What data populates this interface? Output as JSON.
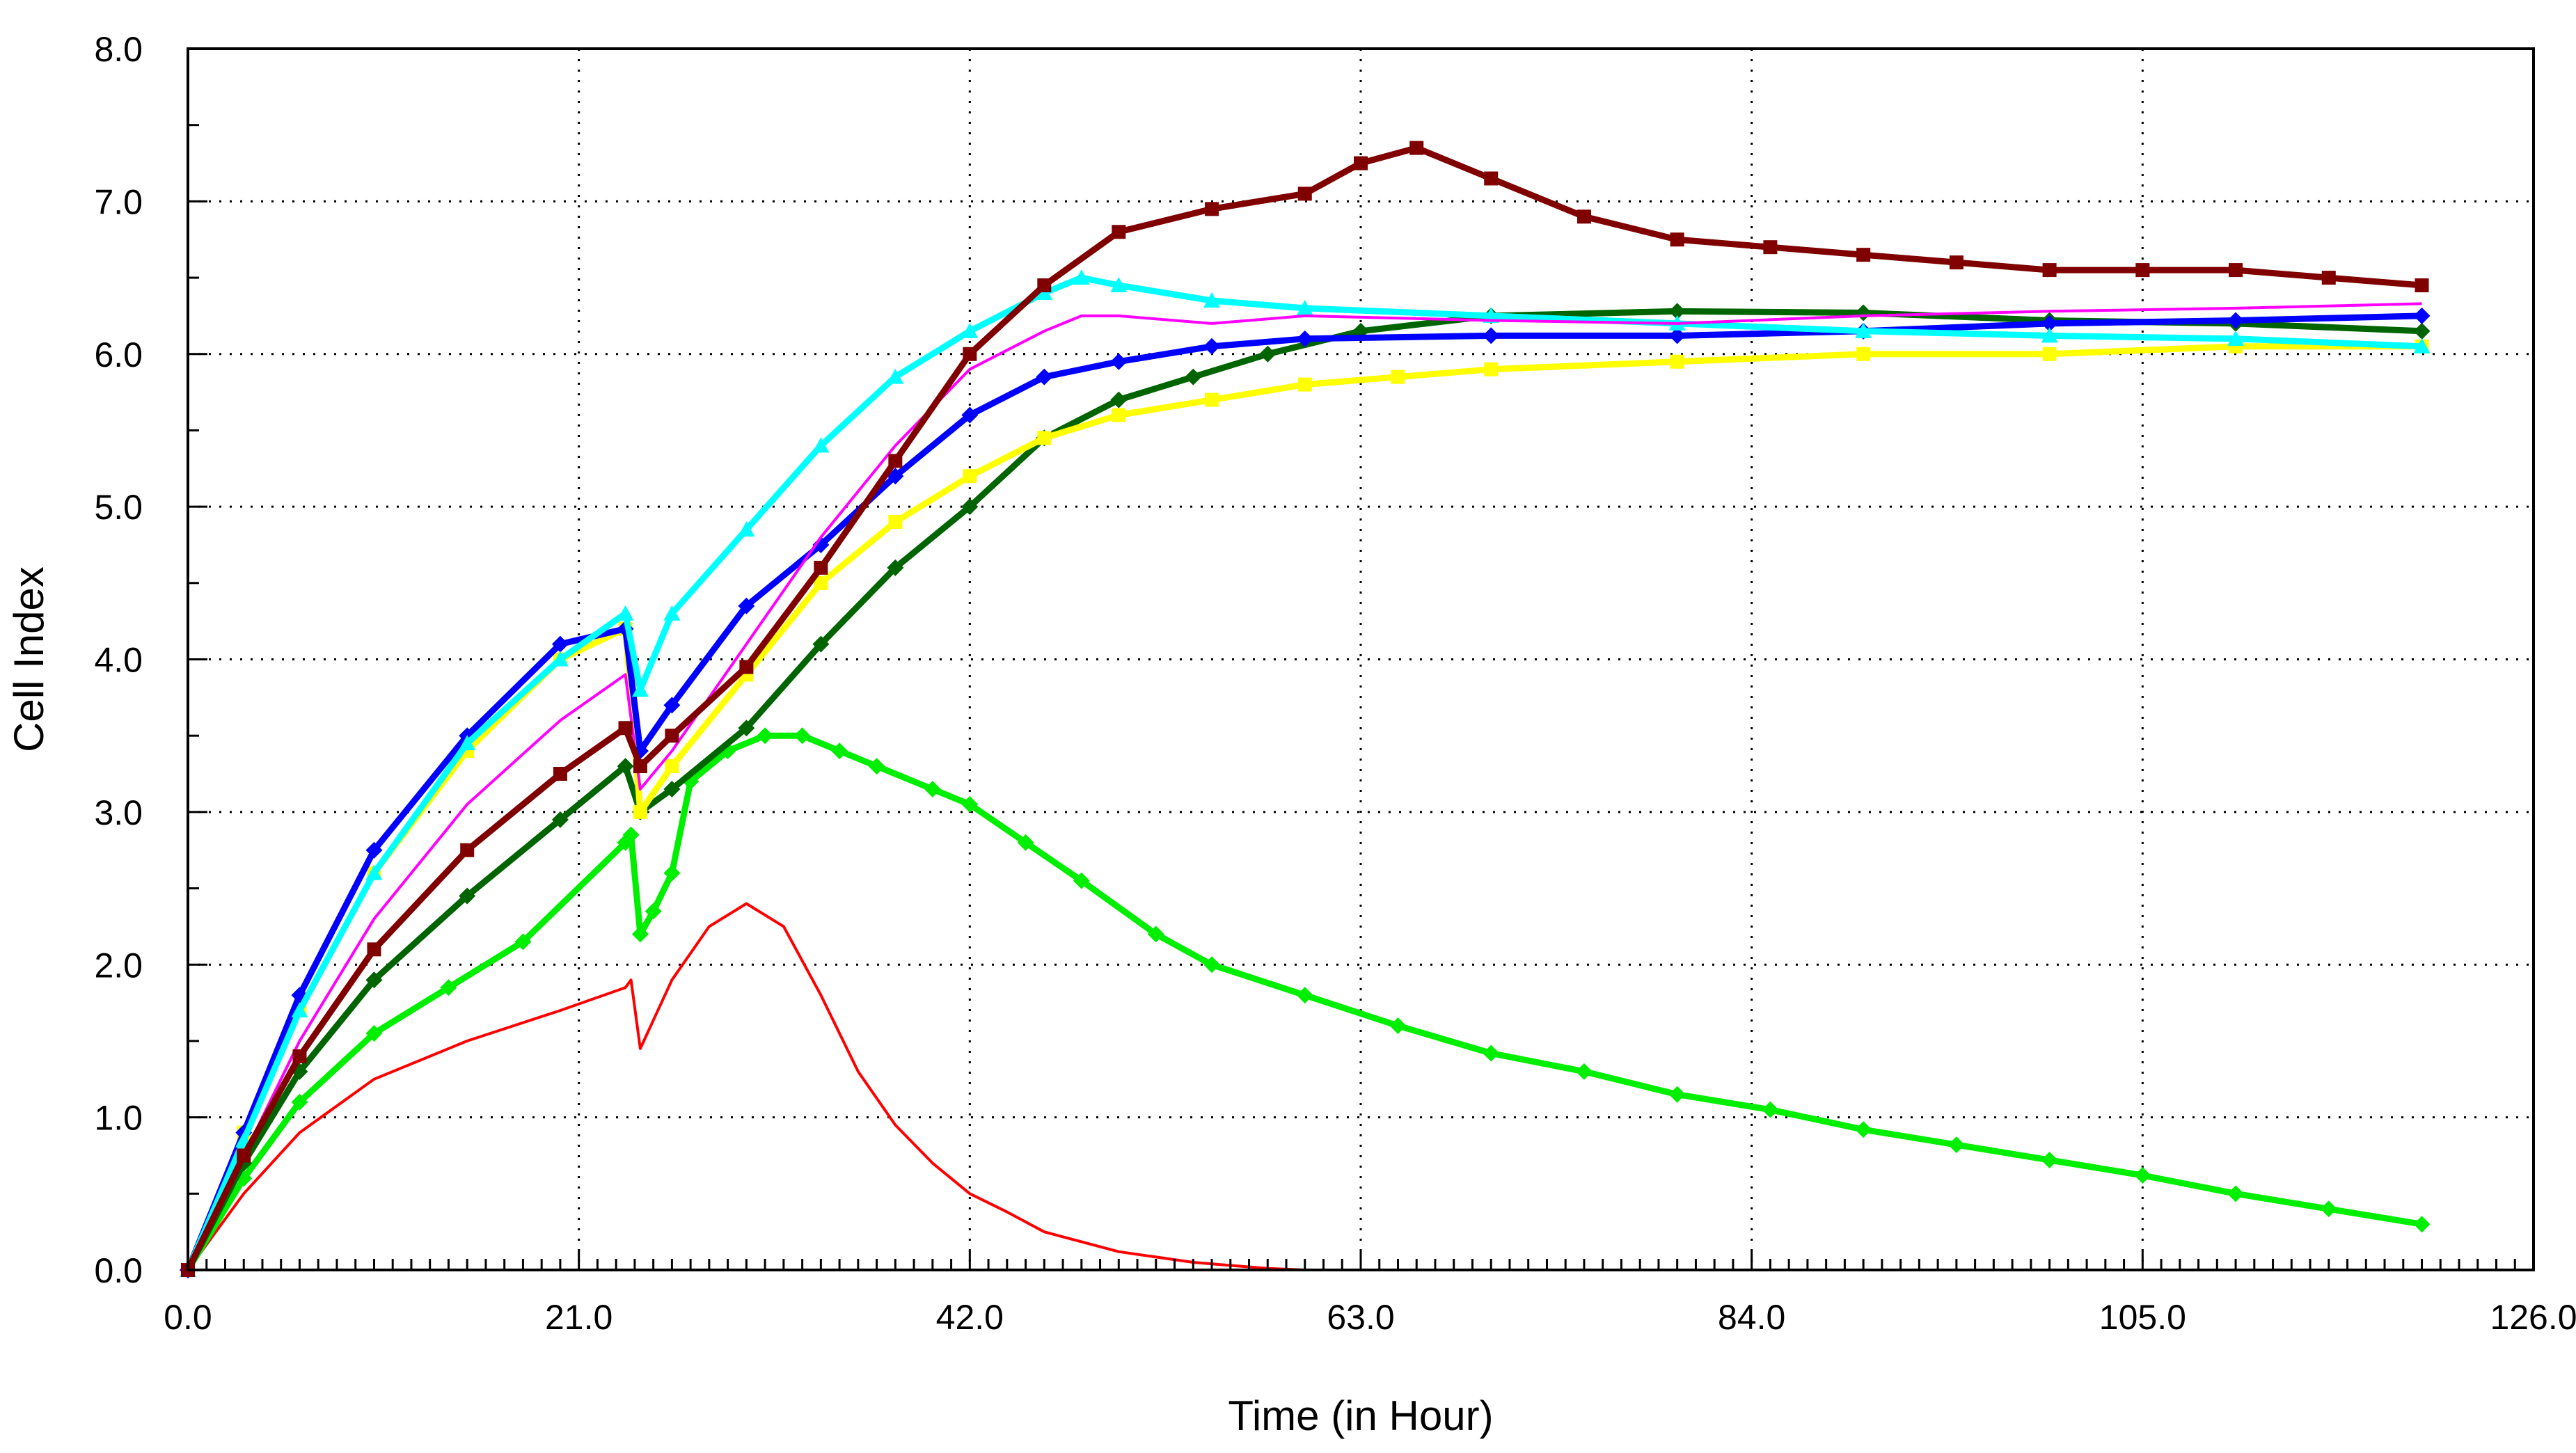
{
  "chart_data": {
    "type": "line",
    "title": "",
    "xlabel": "Time (in Hour)",
    "ylabel": "Cell Index",
    "xlim": [
      0,
      126
    ],
    "ylim": [
      0,
      8
    ],
    "grid": true,
    "grid_style": "dotted",
    "legend": "none",
    "x_ticks": [
      "0.0",
      "21.0",
      "42.0",
      "63.0",
      "84.0",
      "105.0",
      "126.0"
    ],
    "y_ticks": [
      "0.0",
      "1.0",
      "2.0",
      "3.0",
      "4.0",
      "5.0",
      "6.0",
      "7.0",
      "8.0"
    ],
    "series": [
      {
        "color": "#FF0000",
        "marker": "none",
        "points": [
          [
            0,
            0
          ],
          [
            3,
            0.5
          ],
          [
            6,
            0.9
          ],
          [
            10,
            1.25
          ],
          [
            15,
            1.5
          ],
          [
            20,
            1.7
          ],
          [
            23.5,
            1.85
          ],
          [
            23.8,
            1.9
          ],
          [
            24.3,
            1.45
          ],
          [
            26,
            1.9
          ],
          [
            28,
            2.25
          ],
          [
            30,
            2.4
          ],
          [
            32,
            2.25
          ],
          [
            34,
            1.8
          ],
          [
            36,
            1.3
          ],
          [
            38,
            0.95
          ],
          [
            40,
            0.7
          ],
          [
            42,
            0.5
          ],
          [
            44,
            0.38
          ],
          [
            46,
            0.25
          ],
          [
            50,
            0.12
          ],
          [
            54,
            0.05
          ],
          [
            58,
            0.01
          ],
          [
            60,
            0
          ],
          [
            120,
            0
          ]
        ]
      },
      {
        "color": "#00EE00",
        "marker": "diamond",
        "points": [
          [
            0,
            0
          ],
          [
            3,
            0.6
          ],
          [
            6,
            1.1
          ],
          [
            10,
            1.55
          ],
          [
            14,
            1.85
          ],
          [
            18,
            2.15
          ],
          [
            23.5,
            2.8
          ],
          [
            23.8,
            2.85
          ],
          [
            24.3,
            2.2
          ],
          [
            25,
            2.35
          ],
          [
            26,
            2.6
          ],
          [
            27,
            3.2
          ],
          [
            29,
            3.4
          ],
          [
            31,
            3.5
          ],
          [
            33,
            3.5
          ],
          [
            35,
            3.4
          ],
          [
            37,
            3.3
          ],
          [
            40,
            3.15
          ],
          [
            42,
            3.05
          ],
          [
            45,
            2.8
          ],
          [
            48,
            2.55
          ],
          [
            52,
            2.2
          ],
          [
            55,
            2.0
          ],
          [
            60,
            1.8
          ],
          [
            65,
            1.6
          ],
          [
            70,
            1.42
          ],
          [
            75,
            1.3
          ],
          [
            80,
            1.15
          ],
          [
            85,
            1.05
          ],
          [
            90,
            0.92
          ],
          [
            95,
            0.82
          ],
          [
            100,
            0.72
          ],
          [
            105,
            0.62
          ],
          [
            110,
            0.5
          ],
          [
            115,
            0.4
          ],
          [
            120,
            0.3
          ]
        ]
      },
      {
        "color": "#006400",
        "marker": "diamond",
        "points": [
          [
            0,
            0
          ],
          [
            3,
            0.7
          ],
          [
            6,
            1.3
          ],
          [
            10,
            1.9
          ],
          [
            15,
            2.45
          ],
          [
            20,
            2.95
          ],
          [
            23.5,
            3.3
          ],
          [
            24.3,
            3.0
          ],
          [
            26,
            3.15
          ],
          [
            30,
            3.55
          ],
          [
            34,
            4.1
          ],
          [
            38,
            4.6
          ],
          [
            42,
            5.0
          ],
          [
            46,
            5.45
          ],
          [
            50,
            5.7
          ],
          [
            54,
            5.85
          ],
          [
            58,
            6.0
          ],
          [
            63,
            6.15
          ],
          [
            70,
            6.25
          ],
          [
            80,
            6.28
          ],
          [
            90,
            6.27
          ],
          [
            100,
            6.22
          ],
          [
            110,
            6.2
          ],
          [
            120,
            6.15
          ]
        ]
      },
      {
        "color": "#FFFF00",
        "marker": "square",
        "points": [
          [
            0,
            0
          ],
          [
            3,
            0.9
          ],
          [
            6,
            1.7
          ],
          [
            10,
            2.6
          ],
          [
            15,
            3.4
          ],
          [
            20,
            4.0
          ],
          [
            23.5,
            4.2
          ],
          [
            24.3,
            3.0
          ],
          [
            26,
            3.3
          ],
          [
            30,
            3.9
          ],
          [
            34,
            4.5
          ],
          [
            38,
            4.9
          ],
          [
            42,
            5.2
          ],
          [
            46,
            5.45
          ],
          [
            50,
            5.6
          ],
          [
            55,
            5.7
          ],
          [
            60,
            5.8
          ],
          [
            65,
            5.85
          ],
          [
            70,
            5.9
          ],
          [
            80,
            5.95
          ],
          [
            90,
            6.0
          ],
          [
            100,
            6.0
          ],
          [
            110,
            6.05
          ],
          [
            120,
            6.05
          ]
        ]
      },
      {
        "color": "#0000FF",
        "marker": "diamond",
        "points": [
          [
            0,
            0
          ],
          [
            3,
            0.9
          ],
          [
            6,
            1.8
          ],
          [
            10,
            2.75
          ],
          [
            15,
            3.5
          ],
          [
            20,
            4.1
          ],
          [
            23.5,
            4.2
          ],
          [
            24.3,
            3.4
          ],
          [
            26,
            3.7
          ],
          [
            30,
            4.35
          ],
          [
            34,
            4.75
          ],
          [
            38,
            5.2
          ],
          [
            42,
            5.6
          ],
          [
            46,
            5.85
          ],
          [
            50,
            5.95
          ],
          [
            55,
            6.05
          ],
          [
            60,
            6.1
          ],
          [
            70,
            6.12
          ],
          [
            80,
            6.12
          ],
          [
            90,
            6.15
          ],
          [
            100,
            6.2
          ],
          [
            110,
            6.22
          ],
          [
            120,
            6.25
          ]
        ]
      },
      {
        "color": "#00FFFF",
        "marker": "triangle",
        "points": [
          [
            0,
            0
          ],
          [
            3,
            0.85
          ],
          [
            6,
            1.7
          ],
          [
            10,
            2.6
          ],
          [
            15,
            3.45
          ],
          [
            20,
            4.0
          ],
          [
            23.5,
            4.3
          ],
          [
            24.3,
            3.8
          ],
          [
            26,
            4.3
          ],
          [
            30,
            4.85
          ],
          [
            34,
            5.4
          ],
          [
            38,
            5.85
          ],
          [
            42,
            6.15
          ],
          [
            46,
            6.4
          ],
          [
            48,
            6.5
          ],
          [
            50,
            6.45
          ],
          [
            55,
            6.35
          ],
          [
            60,
            6.3
          ],
          [
            70,
            6.25
          ],
          [
            80,
            6.2
          ],
          [
            90,
            6.15
          ],
          [
            100,
            6.12
          ],
          [
            110,
            6.1
          ],
          [
            120,
            6.05
          ]
        ]
      },
      {
        "color": "#FF00FF",
        "marker": "none",
        "points": [
          [
            0,
            0
          ],
          [
            3,
            0.75
          ],
          [
            6,
            1.5
          ],
          [
            10,
            2.3
          ],
          [
            15,
            3.05
          ],
          [
            20,
            3.6
          ],
          [
            23.5,
            3.9
          ],
          [
            24.3,
            3.15
          ],
          [
            26,
            3.4
          ],
          [
            30,
            4.1
          ],
          [
            34,
            4.8
          ],
          [
            38,
            5.4
          ],
          [
            42,
            5.9
          ],
          [
            46,
            6.15
          ],
          [
            48,
            6.25
          ],
          [
            50,
            6.25
          ],
          [
            55,
            6.2
          ],
          [
            60,
            6.25
          ],
          [
            70,
            6.22
          ],
          [
            80,
            6.2
          ],
          [
            90,
            6.25
          ],
          [
            100,
            6.28
          ],
          [
            110,
            6.3
          ],
          [
            120,
            6.33
          ]
        ]
      },
      {
        "color": "#800000",
        "marker": "square",
        "points": [
          [
            0,
            0
          ],
          [
            3,
            0.75
          ],
          [
            6,
            1.4
          ],
          [
            10,
            2.1
          ],
          [
            15,
            2.75
          ],
          [
            20,
            3.25
          ],
          [
            23.5,
            3.55
          ],
          [
            24.3,
            3.3
          ],
          [
            26,
            3.5
          ],
          [
            30,
            3.95
          ],
          [
            34,
            4.6
          ],
          [
            38,
            5.3
          ],
          [
            42,
            6.0
          ],
          [
            46,
            6.45
          ],
          [
            50,
            6.8
          ],
          [
            55,
            6.95
          ],
          [
            60,
            7.05
          ],
          [
            63,
            7.25
          ],
          [
            66,
            7.35
          ],
          [
            70,
            7.15
          ],
          [
            75,
            6.9
          ],
          [
            80,
            6.75
          ],
          [
            85,
            6.7
          ],
          [
            90,
            6.65
          ],
          [
            95,
            6.6
          ],
          [
            100,
            6.55
          ],
          [
            105,
            6.55
          ],
          [
            110,
            6.55
          ],
          [
            115,
            6.5
          ],
          [
            120,
            6.45
          ]
        ]
      }
    ]
  }
}
